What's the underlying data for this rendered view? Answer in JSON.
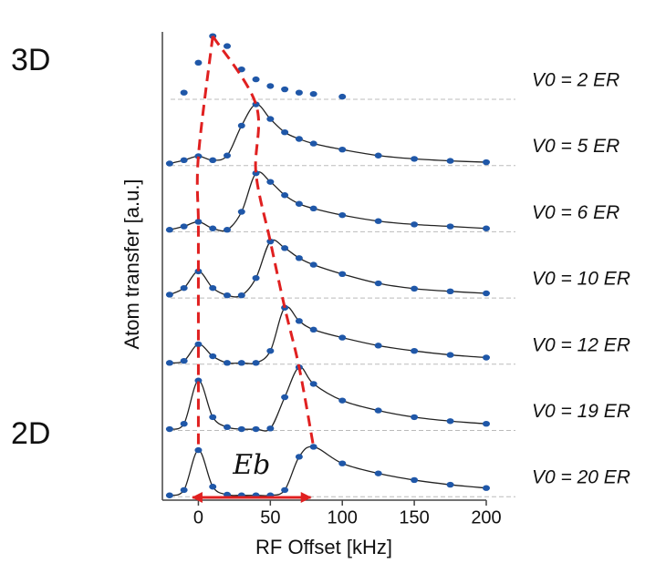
{
  "chart_data": {
    "type": "line",
    "x_label": "RF Offset [kHz]",
    "y_label": "Atom transfer [a.u.]",
    "regime_labels": [
      "3D",
      "2D"
    ],
    "annotation": {
      "text": "Eb",
      "range": [
        -4,
        78
      ]
    },
    "xlim": [
      -25,
      200
    ],
    "xticks": [
      0,
      50,
      100,
      150,
      200
    ],
    "x": [
      -20,
      -10,
      0,
      10,
      20,
      30,
      40,
      50,
      60,
      70,
      80,
      100,
      125,
      150,
      175,
      200
    ],
    "series": [
      {
        "name": "V0 = 2 ER",
        "color": "#1f57a8",
        "fit": false,
        "values": [
          null,
          0.1,
          0.55,
          0.95,
          0.8,
          0.45,
          0.3,
          0.2,
          0.15,
          0.1,
          0.08,
          0.04,
          null,
          null,
          null,
          null
        ]
      },
      {
        "name": "V0 = 5 ER",
        "color": "#1f57a8",
        "fit": true,
        "values": [
          0.03,
          0.08,
          0.14,
          0.08,
          0.15,
          0.6,
          0.92,
          0.7,
          0.5,
          0.4,
          0.33,
          0.24,
          0.15,
          0.1,
          0.07,
          0.05
        ]
      },
      {
        "name": "V0 = 6 ER",
        "color": "#1f57a8",
        "fit": true,
        "values": [
          0.03,
          0.08,
          0.15,
          0.05,
          0.03,
          0.3,
          0.88,
          0.75,
          0.55,
          0.42,
          0.35,
          0.25,
          0.16,
          0.11,
          0.08,
          0.05
        ]
      },
      {
        "name": "V0 = 10 ER",
        "color": "#1f57a8",
        "fit": true,
        "values": [
          0.05,
          0.15,
          0.4,
          0.15,
          0.04,
          0.04,
          0.3,
          0.85,
          0.75,
          0.6,
          0.5,
          0.36,
          0.22,
          0.14,
          0.1,
          0.07
        ]
      },
      {
        "name": "V0 = 12 ER",
        "color": "#1f57a8",
        "fit": true,
        "values": [
          0.02,
          0.05,
          0.3,
          0.12,
          0.02,
          0.02,
          0.02,
          0.2,
          0.85,
          0.65,
          0.52,
          0.4,
          0.28,
          0.2,
          0.14,
          0.1
        ]
      },
      {
        "name": "V0 = 19 ER",
        "color": "#1f57a8",
        "fit": true,
        "values": [
          0.02,
          0.1,
          0.75,
          0.2,
          0.05,
          0.02,
          0.02,
          0.03,
          0.5,
          0.95,
          0.7,
          0.45,
          0.3,
          0.2,
          0.14,
          0.1
        ]
      },
      {
        "name": "V0 = 20 ER",
        "color": "#1f57a8",
        "fit": true,
        "values": [
          0.02,
          0.1,
          0.7,
          0.15,
          0.03,
          0.02,
          0.02,
          0.02,
          0.1,
          0.6,
          0.75,
          0.5,
          0.35,
          0.25,
          0.18,
          0.13
        ]
      }
    ],
    "peak_line_color": "#e02020",
    "baseline_color": "#bbbbbb"
  }
}
